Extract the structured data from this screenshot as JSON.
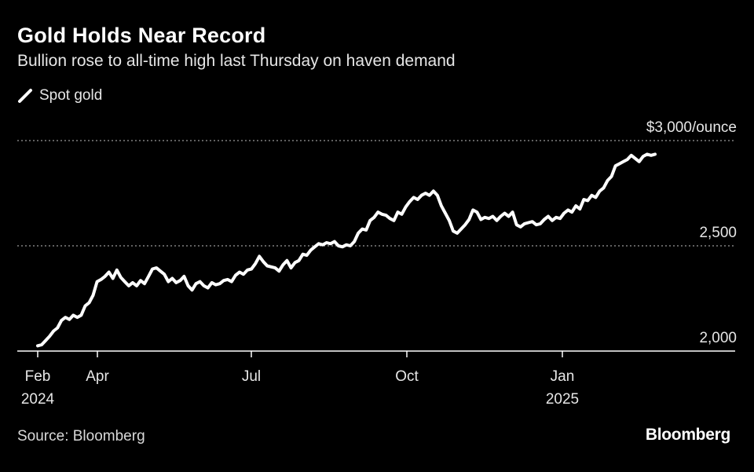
{
  "chart_data": {
    "type": "line",
    "title": "Gold Holds Near Record",
    "subtitle": "Bullion rose to all-time high last Thursday on haven demand",
    "series": [
      {
        "name": "Spot gold",
        "color": "#ffffff",
        "values": [
          2025,
          2030,
          2050,
          2070,
          2095,
          2110,
          2145,
          2160,
          2150,
          2170,
          2160,
          2170,
          2215,
          2230,
          2265,
          2330,
          2340,
          2355,
          2375,
          2345,
          2385,
          2350,
          2330,
          2310,
          2325,
          2310,
          2335,
          2320,
          2355,
          2390,
          2395,
          2380,
          2365,
          2330,
          2345,
          2325,
          2335,
          2355,
          2310,
          2290,
          2320,
          2330,
          2310,
          2300,
          2325,
          2315,
          2320,
          2335,
          2340,
          2330,
          2360,
          2375,
          2365,
          2385,
          2390,
          2415,
          2450,
          2425,
          2405,
          2400,
          2395,
          2380,
          2410,
          2430,
          2395,
          2420,
          2430,
          2460,
          2455,
          2480,
          2495,
          2510,
          2505,
          2515,
          2510,
          2520,
          2500,
          2495,
          2505,
          2500,
          2520,
          2560,
          2580,
          2575,
          2620,
          2635,
          2660,
          2650,
          2645,
          2630,
          2620,
          2660,
          2650,
          2685,
          2710,
          2730,
          2720,
          2740,
          2750,
          2740,
          2760,
          2740,
          2690,
          2655,
          2620,
          2570,
          2560,
          2580,
          2600,
          2625,
          2670,
          2660,
          2625,
          2635,
          2630,
          2640,
          2620,
          2640,
          2655,
          2640,
          2660,
          2600,
          2590,
          2605,
          2610,
          2615,
          2600,
          2605,
          2625,
          2640,
          2620,
          2635,
          2630,
          2655,
          2670,
          2660,
          2690,
          2675,
          2720,
          2715,
          2740,
          2730,
          2760,
          2775,
          2810,
          2830,
          2880,
          2890,
          2900,
          2910,
          2930,
          2915,
          2900,
          2925,
          2935,
          2930,
          2935
        ]
      }
    ],
    "x_tick_labels": [
      "Feb",
      "Apr",
      "Jul",
      "Oct",
      "Jan"
    ],
    "x_year_labels": [
      "2024",
      "2025"
    ],
    "y_tick_labels": [
      "$3,000/ounce",
      "2,500",
      "2,000"
    ],
    "y_ticks": [
      3000,
      2500,
      2000
    ],
    "ylim": [
      2000,
      3000
    ],
    "xlabel": "",
    "ylabel": "",
    "grid": "dotted horizontal",
    "legend_position": "top-left"
  },
  "source_text": "Source: Bloomberg",
  "brand_text": "Bloomberg"
}
